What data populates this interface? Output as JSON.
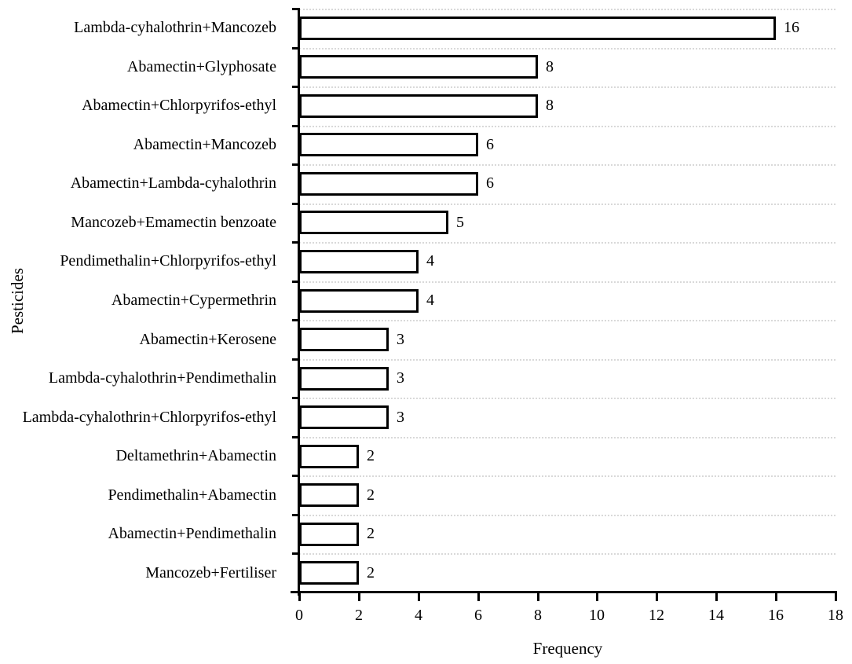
{
  "chart_data": {
    "type": "bar",
    "orientation": "horizontal",
    "title": "",
    "xlabel": "Frequency",
    "ylabel": "Pesticides",
    "categories": [
      "Lambda-cyhalothrin+Mancozeb",
      "Abamectin+Glyphosate",
      "Abamectin+Chlorpyrifos-ethyl",
      "Abamectin+Mancozeb",
      "Abamectin+Lambda-cyhalothrin",
      "Mancozeb+Emamectin benzoate",
      "Pendimethalin+Chlorpyrifos-ethyl",
      "Abamectin+Cypermethrin",
      "Abamectin+Kerosene",
      "Lambda-cyhalothrin+Pendimethalin",
      "Lambda-cyhalothrin+Chlorpyrifos-ethyl",
      "Deltamethrin+Abamectin",
      "Pendimethalin+Abamectin",
      "Abamectin+Pendimethalin",
      "Mancozeb+Fertiliser"
    ],
    "values": [
      16,
      8,
      8,
      6,
      6,
      5,
      4,
      4,
      3,
      3,
      3,
      2,
      2,
      2,
      2
    ],
    "xlim": [
      0,
      18
    ],
    "xticks": [
      0,
      2,
      4,
      6,
      8,
      10,
      12,
      14,
      16,
      18
    ],
    "grid": "category-boundaries-dotted",
    "legend": "none",
    "bar_fill_color": "#ffffff",
    "bar_border_color": "#000000",
    "gridline_color": "#d9d9d9",
    "axis_color": "#000000",
    "text_color": "#000000"
  }
}
